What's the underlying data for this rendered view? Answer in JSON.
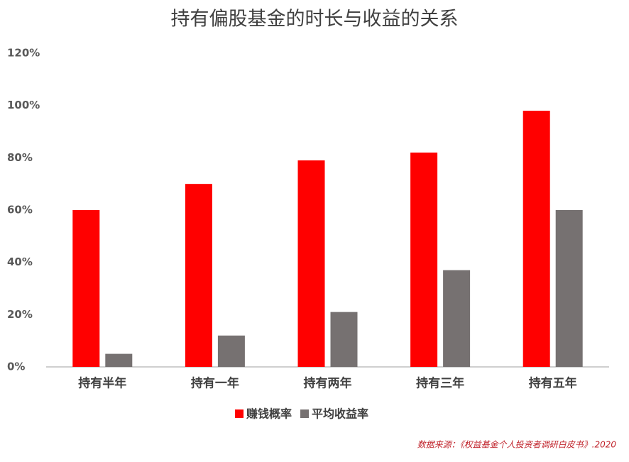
{
  "chart_data": {
    "type": "bar",
    "title": "持有偏股基金的时长与收益的关系",
    "categories": [
      "持有半年",
      "持有一年",
      "持有两年",
      "持有三年",
      "持有五年"
    ],
    "series": [
      {
        "name": "赚钱概率",
        "color": "#ff0000",
        "values": [
          60,
          70,
          79,
          82,
          98
        ]
      },
      {
        "name": "平均收益率",
        "color": "#767171",
        "values": [
          5,
          12,
          21,
          37,
          60
        ]
      }
    ],
    "ylim": [
      0,
      120
    ],
    "yticks": [
      {
        "value": 0,
        "label": "0%"
      },
      {
        "value": 20,
        "label": "20%"
      },
      {
        "value": 40,
        "label": "40%"
      },
      {
        "value": 60,
        "label": "60%"
      },
      {
        "value": 80,
        "label": "80%"
      },
      {
        "value": 100,
        "label": "100%"
      },
      {
        "value": 120,
        "label": "120%"
      }
    ],
    "grid": false,
    "legend": "bottom",
    "source": "数据来源：《权益基金个人投资者调研白皮书》.2020"
  }
}
